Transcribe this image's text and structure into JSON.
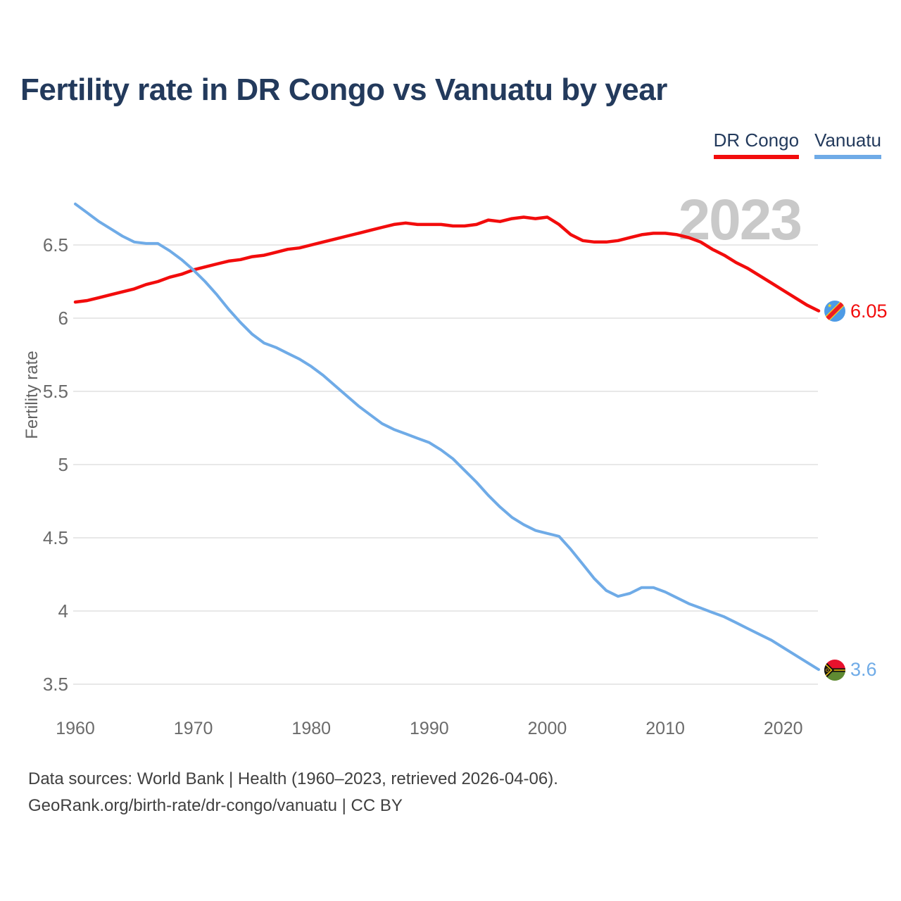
{
  "title": "Fertility rate in DR Congo vs Vanuatu by year",
  "watermark": "2023",
  "legend": {
    "items": [
      {
        "label": "DR Congo",
        "color": "#f20c0c"
      },
      {
        "label": "Vanuatu",
        "color": "#6fabe7"
      }
    ]
  },
  "y_axis": {
    "label": "Fertility rate"
  },
  "end_labels": {
    "dr_congo": "6.05",
    "vanuatu": "3.6"
  },
  "flags": {
    "dr_congo": "dr-congo-flag",
    "vanuatu": "vanuatu-flag"
  },
  "footer": {
    "line1": "Data sources: World Bank | Health (1960–2023, retrieved 2026-04-06).",
    "line2": "GeoRank.org/birth-rate/dr-congo/vanuatu | CC BY"
  },
  "chart_data": {
    "type": "line",
    "title": "Fertility rate in DR Congo vs Vanuatu by year",
    "xlabel": "",
    "ylabel": "Fertility rate",
    "x_range": [
      1960,
      2023
    ],
    "ylim": [
      3.35,
      6.85
    ],
    "y_ticks": [
      6.5,
      6,
      5.5,
      5,
      4.5,
      4,
      3.5
    ],
    "x_ticks": [
      1960,
      1970,
      1980,
      1990,
      2000,
      2010,
      2020
    ],
    "grid": "horizontal",
    "legend_position": "top-right",
    "annotation_year": "2023",
    "years": [
      1960,
      1961,
      1962,
      1963,
      1964,
      1965,
      1966,
      1967,
      1968,
      1969,
      1970,
      1971,
      1972,
      1973,
      1974,
      1975,
      1976,
      1977,
      1978,
      1979,
      1980,
      1981,
      1982,
      1983,
      1984,
      1985,
      1986,
      1987,
      1988,
      1989,
      1990,
      1991,
      1992,
      1993,
      1994,
      1995,
      1996,
      1997,
      1998,
      1999,
      2000,
      2001,
      2002,
      2003,
      2004,
      2005,
      2006,
      2007,
      2008,
      2009,
      2010,
      2011,
      2012,
      2013,
      2014,
      2015,
      2016,
      2017,
      2018,
      2019,
      2020,
      2021,
      2022,
      2023
    ],
    "series": [
      {
        "name": "DR Congo",
        "color": "#f20c0c",
        "end_label": "6.05",
        "values": [
          6.11,
          6.12,
          6.14,
          6.16,
          6.18,
          6.2,
          6.23,
          6.25,
          6.28,
          6.3,
          6.33,
          6.35,
          6.37,
          6.39,
          6.4,
          6.42,
          6.43,
          6.45,
          6.47,
          6.48,
          6.5,
          6.52,
          6.54,
          6.56,
          6.58,
          6.6,
          6.62,
          6.64,
          6.65,
          6.64,
          6.64,
          6.64,
          6.63,
          6.63,
          6.64,
          6.67,
          6.66,
          6.68,
          6.69,
          6.68,
          6.69,
          6.64,
          6.57,
          6.53,
          6.52,
          6.52,
          6.53,
          6.55,
          6.57,
          6.58,
          6.58,
          6.57,
          6.55,
          6.52,
          6.47,
          6.43,
          6.38,
          6.34,
          6.29,
          6.24,
          6.19,
          6.14,
          6.09,
          6.05
        ]
      },
      {
        "name": "Vanuatu",
        "color": "#6fabe7",
        "end_label": "3.6",
        "values": [
          6.78,
          6.72,
          6.66,
          6.61,
          6.56,
          6.52,
          6.51,
          6.51,
          6.46,
          6.4,
          6.33,
          6.25,
          6.16,
          6.06,
          5.97,
          5.89,
          5.83,
          5.8,
          5.76,
          5.72,
          5.67,
          5.61,
          5.54,
          5.47,
          5.4,
          5.34,
          5.28,
          5.24,
          5.21,
          5.18,
          5.15,
          5.1,
          5.04,
          4.96,
          4.88,
          4.79,
          4.71,
          4.64,
          4.59,
          4.55,
          4.53,
          4.51,
          4.42,
          4.32,
          4.22,
          4.14,
          4.1,
          4.12,
          4.16,
          4.16,
          4.13,
          4.09,
          4.05,
          4.02,
          3.99,
          3.96,
          3.92,
          3.88,
          3.84,
          3.8,
          3.75,
          3.7,
          3.65,
          3.6
        ]
      }
    ]
  }
}
